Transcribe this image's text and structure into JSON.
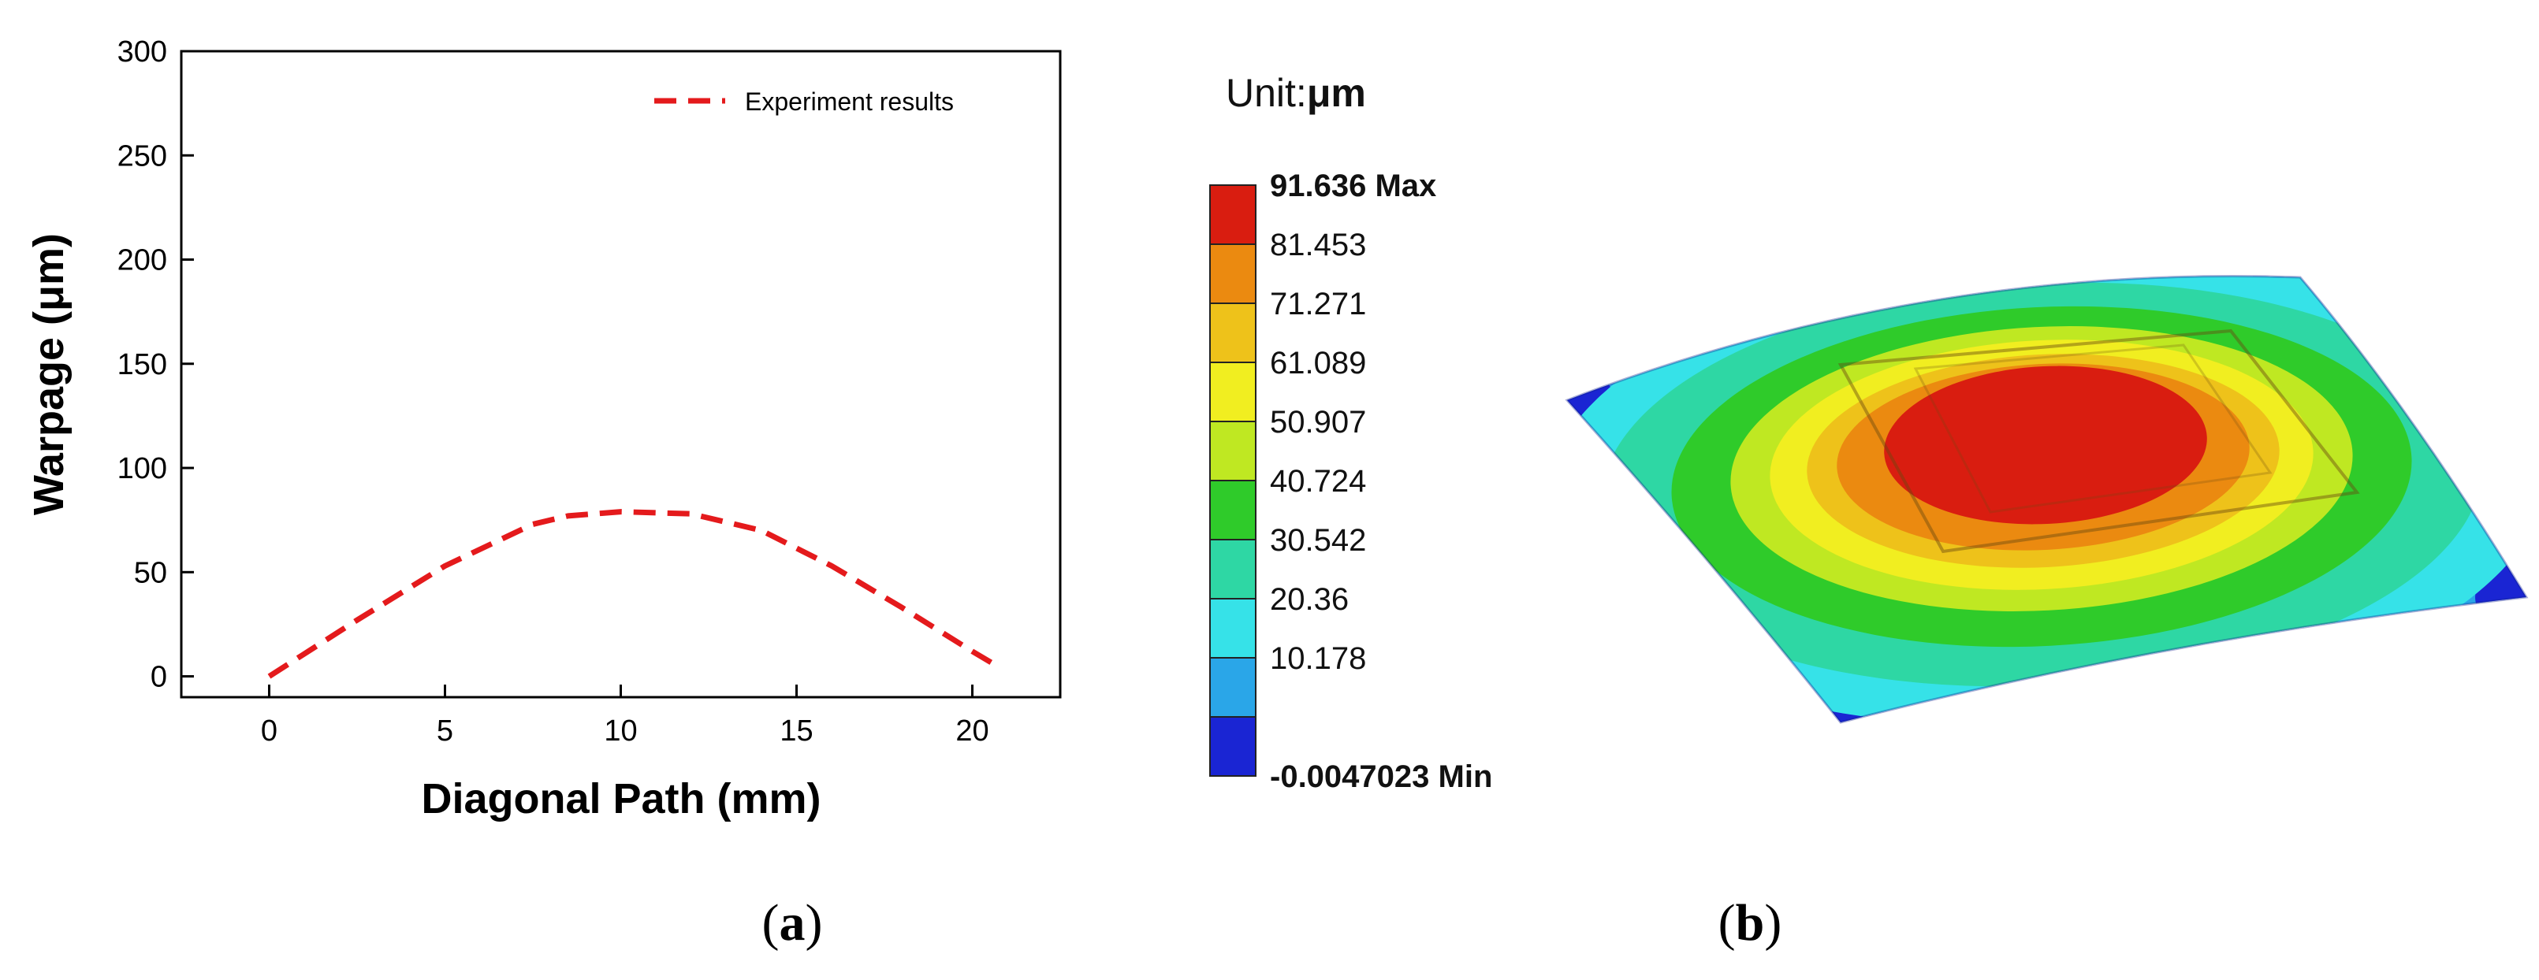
{
  "chart_data": {
    "type": "line",
    "xlabel": "Diagonal Path (mm)",
    "ylabel": "Warpage (μm)",
    "xlim": [
      -2.5,
      22.5
    ],
    "ylim": [
      -10,
      300
    ],
    "xticks": [
      0,
      5,
      10,
      15,
      20
    ],
    "yticks": [
      0,
      50,
      100,
      150,
      200,
      250,
      300
    ],
    "series": [
      {
        "name": "Experiment results",
        "color": "#e41a1c",
        "style": "dashed",
        "x": [
          0,
          2.5,
          5,
          7.5,
          8.5,
          10,
          12,
          14,
          16,
          18,
          20,
          20.8
        ],
        "y": [
          0,
          27,
          53,
          73,
          77,
          79,
          78,
          70,
          53,
          33,
          12,
          4
        ]
      }
    ]
  },
  "colorbar": {
    "title_prefix": "Unit:",
    "title_unit": "μm",
    "labels": [
      "91.636 Max",
      "81.453",
      "71.271",
      "61.089",
      "50.907",
      "40.724",
      "30.542",
      "20.36",
      "10.178",
      "-0.0047023 Min"
    ],
    "colors": [
      "#d91d10",
      "#eb8a10",
      "#eec21a",
      "#f1ee20",
      "#bfe822",
      "#2fcb2a",
      "#2ed7a4",
      "#36e2e8",
      "#2aa6e8",
      "#1a25d3"
    ]
  },
  "contour": {
    "colors": {
      "blue": "#1a25d3",
      "light_blue": "#2aa6e8",
      "cyan": "#36e2e8",
      "aqua": "#2ed7a4",
      "green": "#2fcb2a",
      "lime": "#bfe822",
      "yellow": "#f1ee20",
      "gold": "#eec21a",
      "orange": "#eb8a10",
      "red": "#d91d10"
    }
  },
  "captions": {
    "a": "a",
    "b": "b"
  }
}
